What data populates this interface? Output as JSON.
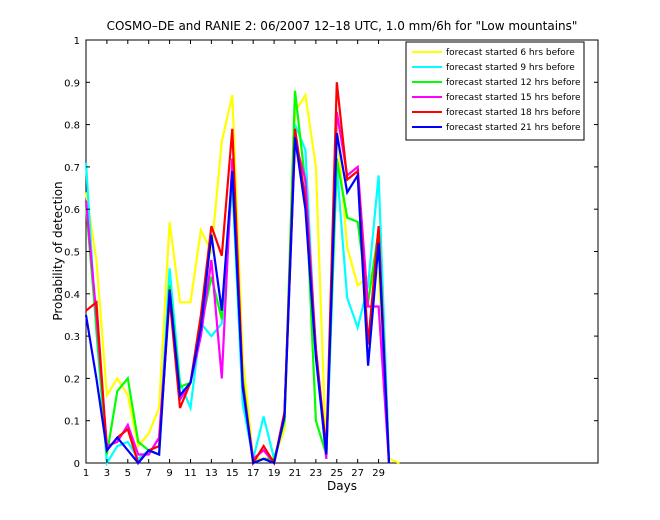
{
  "chart_data": {
    "type": "line",
    "title": "COSMO–DE and RANIE 2: 06/2007 12–18 UTC, 1.0 mm/6h for \"Low mountains\"",
    "xlabel": "Days",
    "ylabel": "Probability of detection",
    "xlim": [
      1,
      50
    ],
    "ylim": [
      0,
      1
    ],
    "xticks": [
      1,
      3,
      5,
      7,
      9,
      11,
      13,
      15,
      17,
      19,
      21,
      23,
      25,
      27,
      29
    ],
    "yticks": [
      0,
      0.1,
      0.2,
      0.3,
      0.4,
      0.5,
      0.6,
      0.7,
      0.8,
      0.9,
      1
    ],
    "ytick_labels": [
      "0",
      "0.1",
      "0.2",
      "0.3",
      "0.4",
      "0.5",
      "0.6",
      "0.7",
      "0.8",
      "0.9",
      "1"
    ],
    "legend_position": "top-right",
    "x": [
      1,
      2,
      3,
      4,
      5,
      6,
      7,
      8,
      9,
      10,
      11,
      12,
      13,
      14,
      15,
      16,
      17,
      18,
      19,
      20,
      21,
      22,
      23,
      24,
      25,
      26,
      27,
      28,
      29,
      30,
      31
    ],
    "series": [
      {
        "name": "forecast started 6 hrs before",
        "color": "#ffff00",
        "values": [
          0.64,
          0.48,
          0.16,
          0.2,
          0.16,
          0.04,
          0.07,
          0.13,
          0.57,
          0.38,
          0.38,
          0.55,
          0.5,
          0.76,
          0.87,
          0.25,
          0.01,
          0.01,
          0.01,
          0.08,
          0.83,
          0.87,
          0.7,
          0.01,
          0.8,
          0.51,
          0.42,
          0.44,
          0.45,
          0.01,
          0.0
        ]
      },
      {
        "name": "forecast started 9 hrs before",
        "color": "#00ffff",
        "values": [
          0.71,
          0.31,
          0.0,
          0.04,
          0.05,
          0.01,
          0.03,
          0.04,
          0.46,
          0.19,
          0.13,
          0.33,
          0.3,
          0.33,
          0.66,
          0.14,
          0.01,
          0.11,
          0.01,
          0.1,
          0.8,
          0.74,
          0.25,
          0.01,
          0.7,
          0.39,
          0.32,
          0.42,
          0.68,
          0.01,
          null
        ]
      },
      {
        "name": "forecast started 12 hrs before",
        "color": "#00ff00",
        "values": [
          0.61,
          0.32,
          0.02,
          0.17,
          0.2,
          0.05,
          0.03,
          0.02,
          0.42,
          0.18,
          0.19,
          0.32,
          0.44,
          0.34,
          0.68,
          0.2,
          0.0,
          0.01,
          0.01,
          0.1,
          0.88,
          0.66,
          0.1,
          0.02,
          0.72,
          0.58,
          0.57,
          0.38,
          0.55,
          0.0,
          null
        ]
      },
      {
        "name": "forecast started 15 hrs before",
        "color": "#ff00ff",
        "values": [
          0.62,
          0.35,
          0.04,
          0.05,
          0.09,
          0.02,
          0.02,
          0.06,
          0.4,
          0.15,
          0.19,
          0.3,
          0.48,
          0.2,
          0.72,
          0.18,
          0.01,
          0.03,
          0.0,
          0.12,
          0.76,
          0.67,
          0.27,
          0.01,
          0.83,
          0.68,
          0.7,
          0.37,
          0.37,
          0.0,
          null
        ]
      },
      {
        "name": "forecast started 18 hrs before",
        "color": "#ff0000",
        "values": [
          0.36,
          0.38,
          0.03,
          0.06,
          0.08,
          0.0,
          0.03,
          0.04,
          0.39,
          0.13,
          0.19,
          0.35,
          0.56,
          0.49,
          0.79,
          0.19,
          0.0,
          0.04,
          0.0,
          0.12,
          0.79,
          0.62,
          0.27,
          0.03,
          0.9,
          0.67,
          0.69,
          0.28,
          0.56,
          0.0,
          null
        ]
      },
      {
        "name": "forecast started 21 hrs before",
        "color": "#0000ff",
        "values": [
          0.35,
          0.2,
          0.03,
          0.06,
          0.03,
          0.0,
          0.03,
          0.02,
          0.41,
          0.16,
          0.19,
          0.32,
          0.54,
          0.36,
          0.69,
          0.18,
          0.0,
          0.01,
          0.0,
          0.11,
          0.77,
          0.6,
          0.25,
          0.02,
          0.78,
          0.64,
          0.68,
          0.23,
          0.52,
          0.0,
          null
        ]
      }
    ]
  }
}
